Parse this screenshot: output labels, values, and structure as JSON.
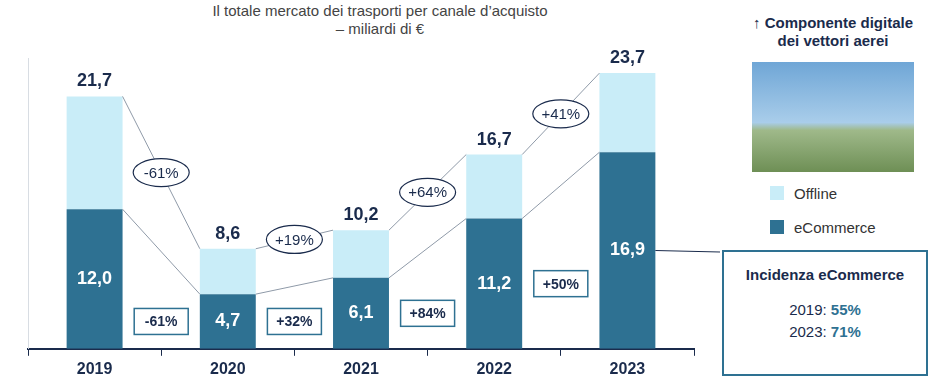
{
  "chart_data": {
    "type": "bar",
    "stacked": true,
    "title": [
      "Il totale mercato dei trasporti per canale d’acquisto",
      "– miliardi di €"
    ],
    "categories": [
      "2019",
      "2020",
      "2021",
      "2022",
      "2023"
    ],
    "series": [
      {
        "name": "eCommerce",
        "color": "#2e7192",
        "values": [
          12.0,
          4.7,
          6.1,
          11.2,
          16.9
        ],
        "value_labels": [
          "12,0",
          "4,7",
          "6,1",
          "11,2",
          "16,9"
        ],
        "data_labels": true
      },
      {
        "name": "Offline",
        "color": "#c9edf8",
        "values": [
          9.7,
          3.9,
          4.1,
          5.5,
          6.8
        ]
      }
    ],
    "totals": [
      21.7,
      8.6,
      10.2,
      16.7,
      23.7
    ],
    "total_labels": [
      "21,7",
      "8,6",
      "10,2",
      "16,7",
      "23,7"
    ],
    "total_growth_labels": [
      "-61%",
      "+19%",
      "+64%",
      "+41%"
    ],
    "ecommerce_growth_labels": [
      "-61%",
      "+32%",
      "+84%",
      "+50%"
    ],
    "ylim": [
      0,
      25
    ],
    "tick_labels": "x",
    "grid": false,
    "legend": "right",
    "side_header": [
      "↑ Componente digitale",
      "dei vettori aerei"
    ],
    "ecommerce_share": {
      "title": "Incidenza eCommerce",
      "items": [
        {
          "label": "2019:",
          "value_label": "55%"
        },
        {
          "label": "2023:",
          "value_label": "71%"
        }
      ]
    }
  }
}
